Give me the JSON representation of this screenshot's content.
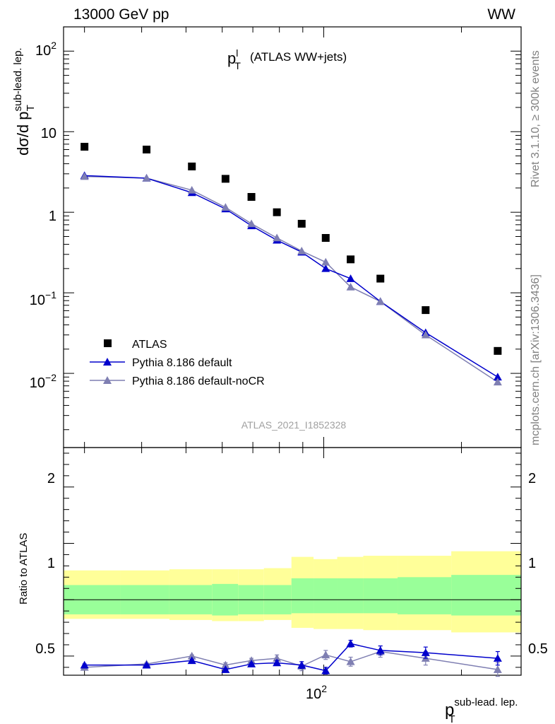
{
  "header": {
    "left": "13000 GeV pp",
    "right": "WW"
  },
  "side_labels": {
    "rivet": "Rivet 3.1.10, ≥ 300k events",
    "mcplots": "mcplots.cern.ch [arXiv:1306.3436]"
  },
  "colors": {
    "atlas": "#000000",
    "default": "#0000cc",
    "noCR": "#7f7fb2",
    "band_inner": "#99ff99",
    "band_outer": "#ffff99"
  },
  "chart_data": [
    {
      "type": "scatter",
      "title": "(ATLAS WW+jets)",
      "title_symbol": "p_T^l",
      "ylabel": "dσ/d p_T^sub-lead. lep.",
      "analysis_label": "ATLAS_2021_I1852328",
      "log_x": true,
      "log_y": true,
      "xlim": [
        27,
        270
      ],
      "ylim": [
        0.0012,
        200
      ],
      "x_ticks": [
        {
          "value": 100,
          "label": "10^2"
        }
      ],
      "y_ticks": [
        {
          "value": 0.01,
          "label": "10^−2"
        },
        {
          "value": 0.1,
          "label": "10^−1"
        },
        {
          "value": 1,
          "label": "1"
        },
        {
          "value": 10,
          "label": "10"
        },
        {
          "value": 100,
          "label": "10^2"
        }
      ],
      "legend": {
        "placement": "bottom-left",
        "entries": [
          "ATLAS",
          "Pythia 8.186 default",
          "Pythia 8.186 default-noCR"
        ]
      },
      "x": [
        30.0,
        41.0,
        51.5,
        61.0,
        69.5,
        79.0,
        89.5,
        101.0,
        114.5,
        133.0,
        167.0,
        240.0
      ],
      "series": [
        {
          "name": "ATLAS",
          "marker": "square",
          "values": [
            6.5,
            6.0,
            3.7,
            2.6,
            1.55,
            1.0,
            0.72,
            0.48,
            0.26,
            0.15,
            0.061,
            0.019
          ]
        },
        {
          "name": "Pythia 8.186 default",
          "marker": "triangle",
          "values": [
            2.85,
            2.65,
            1.75,
            1.1,
            0.68,
            0.45,
            0.32,
            0.2,
            0.15,
            0.078,
            0.032,
            0.009
          ]
        },
        {
          "name": "Pythia 8.186 default-noCR",
          "marker": "triangle",
          "values": [
            2.78,
            2.65,
            1.88,
            1.15,
            0.72,
            0.48,
            0.33,
            0.24,
            0.118,
            0.078,
            0.03,
            0.0078
          ]
        }
      ]
    },
    {
      "type": "line",
      "ylabel": "Ratio to ATLAS",
      "xlabel": "p_T^sub-lead. lep.",
      "log_x": true,
      "xlim": [
        27,
        270
      ],
      "ylim": [
        0.33,
        2.35
      ],
      "y_ticks": [
        0.5,
        1,
        2
      ],
      "reference_line": 1,
      "bin_edges": [
        27,
        36,
        46,
        57,
        65,
        74,
        85,
        95,
        107,
        122,
        145,
        190,
        270
      ],
      "band_inner": {
        "lower": [
          0.87,
          0.87,
          0.87,
          0.86,
          0.87,
          0.87,
          0.88,
          0.88,
          0.88,
          0.88,
          0.87,
          0.86
        ],
        "upper": [
          1.13,
          1.13,
          1.13,
          1.14,
          1.13,
          1.13,
          1.19,
          1.19,
          1.19,
          1.19,
          1.2,
          1.22
        ]
      },
      "band_outer": {
        "lower": [
          0.83,
          0.83,
          0.82,
          0.81,
          0.81,
          0.82,
          0.75,
          0.74,
          0.74,
          0.73,
          0.73,
          0.71
        ],
        "upper": [
          1.26,
          1.26,
          1.27,
          1.27,
          1.27,
          1.28,
          1.38,
          1.36,
          1.38,
          1.39,
          1.39,
          1.43
        ]
      },
      "x": [
        30.0,
        41.0,
        51.5,
        61.0,
        69.5,
        79.0,
        89.5,
        101.0,
        114.5,
        133.0,
        167.0,
        240.0
      ],
      "series": [
        {
          "name": "Pythia 8.186 default",
          "values": [
            0.42,
            0.42,
            0.46,
            0.38,
            0.43,
            0.44,
            0.42,
            0.37,
            0.61,
            0.55,
            0.53,
            0.48
          ],
          "errors": [
            0.01,
            0.01,
            0.01,
            0.01,
            0.01,
            0.02,
            0.03,
            0.03,
            0.03,
            0.04,
            0.05,
            0.06
          ]
        },
        {
          "name": "Pythia 8.186 default-noCR",
          "values": [
            0.4,
            0.43,
            0.5,
            0.42,
            0.46,
            0.48,
            0.41,
            0.51,
            0.45,
            0.54,
            0.48,
            0.38
          ],
          "errors": [
            0.01,
            0.01,
            0.01,
            0.02,
            0.02,
            0.03,
            0.04,
            0.04,
            0.04,
            0.05,
            0.06,
            0.06
          ]
        }
      ]
    }
  ]
}
